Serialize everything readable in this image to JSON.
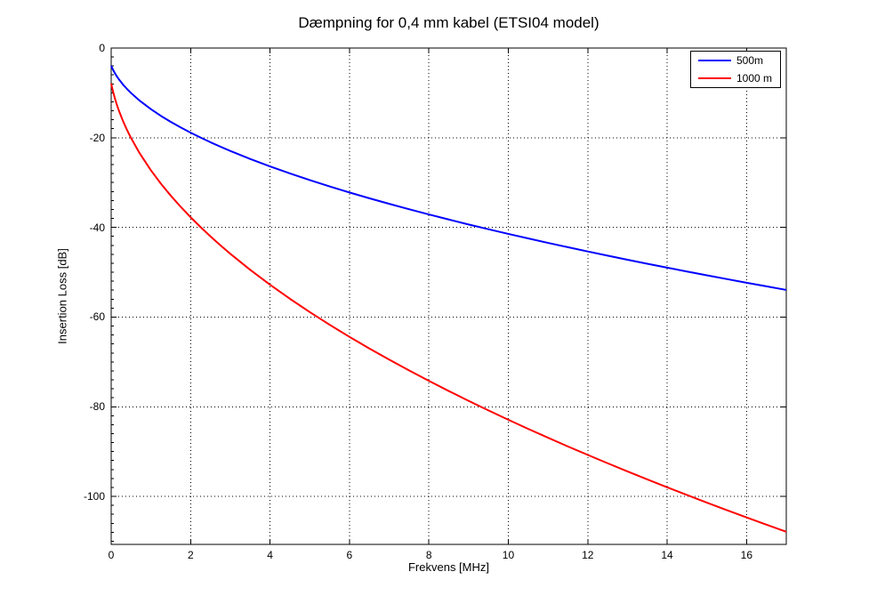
{
  "chart_data": {
    "type": "line",
    "title": "Dæmpning for 0,4 mm kabel (ETSI04 model)",
    "xlabel": "Frekvens [MHz]",
    "ylabel": "Insertion Loss [dB]",
    "xlim": [
      0,
      17
    ],
    "ylim": [
      -110.7,
      0
    ],
    "xticks": [
      0,
      2,
      4,
      6,
      8,
      10,
      12,
      14,
      16
    ],
    "yticks": [
      0,
      -20,
      -40,
      -60,
      -80,
      -100
    ],
    "y_minor_tick_step": 2,
    "grid": true,
    "grid_style": "dotted",
    "legend_position": "top-right",
    "background_color": "#ffffff",
    "axis_color": "#000000",
    "x": [
      0,
      0.02,
      0.05,
      0.1,
      0.15,
      0.2,
      0.3,
      0.4,
      0.5,
      0.7,
      1,
      1.25,
      1.5,
      1.75,
      2,
      2.25,
      2.5,
      2.75,
      3,
      3.5,
      4,
      4.5,
      5,
      5.5,
      6,
      6.5,
      7,
      7.5,
      8,
      8.5,
      9,
      9.5,
      10,
      10.5,
      11,
      11.5,
      12,
      12.5,
      13,
      13.5,
      14,
      14.5,
      15,
      15.5,
      16,
      16.5,
      17
    ],
    "series": [
      {
        "name": "500m",
        "color": "#0000ff",
        "values": [
          -3.95,
          -4.36,
          -4.91,
          -5.71,
          -6.41,
          -7.05,
          -8.17,
          -9.15,
          -10.03,
          -11.61,
          -13.63,
          -15.12,
          -16.46,
          -17.7,
          -18.87,
          -19.96,
          -21.01,
          -22.0,
          -22.95,
          -24.73,
          -26.39,
          -27.96,
          -29.45,
          -30.86,
          -32.21,
          -33.5,
          -34.74,
          -35.95,
          -37.11,
          -38.24,
          -39.35,
          -40.41,
          -41.45,
          -42.46,
          -43.46,
          -44.42,
          -45.37,
          -46.3,
          -47.21,
          -48.1,
          -48.98,
          -49.84,
          -50.69,
          -51.52,
          -52.34,
          -53.15,
          -53.95
        ]
      },
      {
        "name": "1000 m",
        "color": "#ff0000",
        "values": [
          -7.9,
          -8.72,
          -9.82,
          -11.42,
          -12.83,
          -14.09,
          -16.33,
          -18.3,
          -20.07,
          -23.22,
          -27.27,
          -30.23,
          -32.92,
          -35.41,
          -37.74,
          -39.93,
          -42.01,
          -43.99,
          -45.89,
          -49.46,
          -52.79,
          -55.92,
          -58.89,
          -61.71,
          -64.41,
          -67.0,
          -69.49,
          -71.9,
          -74.23,
          -76.49,
          -78.69,
          -80.82,
          -82.9,
          -84.93,
          -86.91,
          -88.85,
          -90.74,
          -92.6,
          -94.42,
          -96.21,
          -97.96,
          -99.68,
          -101.38,
          -103.04,
          -104.68,
          -106.3,
          -107.89
        ]
      }
    ]
  }
}
